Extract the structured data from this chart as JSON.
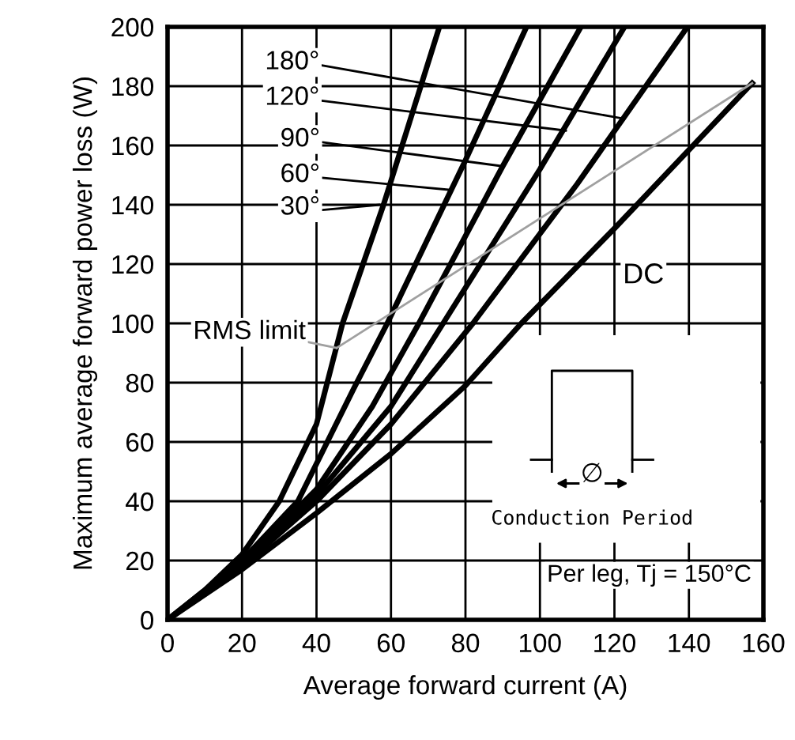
{
  "chart_data": {
    "type": "line",
    "xlabel": "Average forward current (A)",
    "ylabel": "Maximum average forward power loss (W)",
    "xlim": [
      0,
      160
    ],
    "ylim": [
      0,
      200
    ],
    "xticks": [
      0,
      20,
      40,
      60,
      80,
      100,
      120,
      140,
      160
    ],
    "yticks": [
      0,
      20,
      40,
      60,
      80,
      100,
      120,
      140,
      160,
      180,
      200
    ],
    "grid": true,
    "legend": false,
    "line_style": "solid",
    "marker": "none",
    "series": [
      {
        "color": "#000000",
        "x": [
          0,
          10,
          20,
          30,
          40,
          47,
          58,
          73
        ],
        "values": [
          0,
          10,
          22,
          40,
          66,
          100,
          140,
          200
        ]
      },
      {
        "color": "#000000",
        "x": [
          0,
          20,
          35,
          50,
          59,
          80,
          96.4
        ],
        "values": [
          0,
          20,
          40,
          78,
          100,
          155,
          200
        ]
      },
      {
        "color": "#000000",
        "x": [
          0,
          20,
          40,
          55,
          67.5,
          90,
          111
        ],
        "values": [
          0,
          19,
          44,
          72,
          100,
          153,
          200
        ]
      },
      {
        "color": "#000000",
        "x": [
          0,
          20,
          40,
          60,
          74,
          100,
          122.7
        ],
        "values": [
          0,
          19,
          42,
          72,
          100,
          152,
          200
        ]
      },
      {
        "color": "#000000",
        "x": [
          0,
          20,
          40,
          60,
          82,
          110,
          139.6
        ],
        "values": [
          0,
          18,
          40,
          66,
          100,
          147,
          200
        ]
      },
      {
        "name": "DC",
        "color": "#000000",
        "x": [
          0,
          20,
          40,
          60,
          80,
          95,
          120,
          157
        ],
        "values": [
          0,
          17,
          36,
          56,
          79,
          100,
          132,
          181
        ]
      },
      {
        "name": "RMS limit",
        "color": "#a0a0a0",
        "x": [
          45.4,
          157
        ],
        "values": [
          91.7,
          181
        ]
      }
    ],
    "annotations": [
      {
        "text": "30°",
        "x": 57,
        "y": 140
      },
      {
        "text": "60°",
        "x": 76,
        "y": 145
      },
      {
        "text": "90°",
        "x": 90,
        "y": 153
      },
      {
        "text": "120°",
        "x": 107,
        "y": 165
      },
      {
        "text": "180°",
        "x": 122.7,
        "y": 169
      },
      "∅",
      "Conduction Period",
      "Per leg, Tj = 150°C"
    ]
  }
}
